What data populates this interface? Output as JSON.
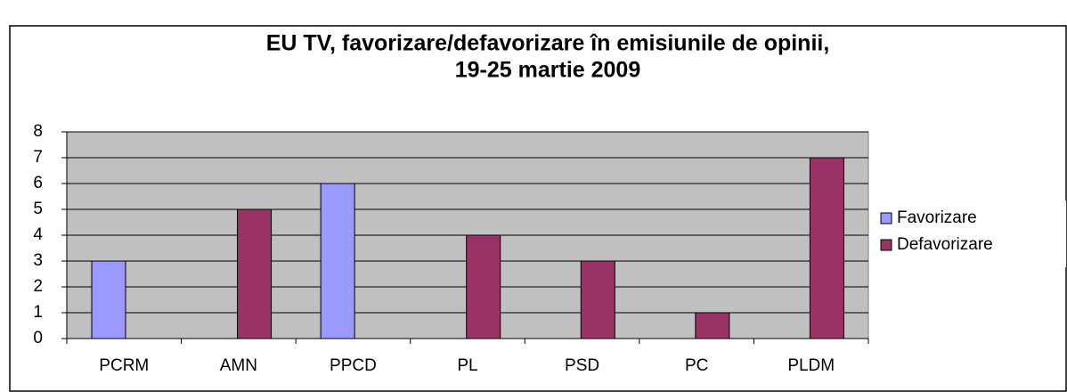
{
  "chart_data": {
    "type": "bar",
    "title": [
      "EU TV, favorizare/defavorizare în emisiunile de opinii,",
      "19-25 martie 2009"
    ],
    "categories": [
      "PCRM",
      "AMN",
      "PPCD",
      "PL",
      "PSD",
      "PC",
      "PLDM"
    ],
    "series": [
      {
        "name": "Favorizare",
        "color": "#9999ff",
        "values": [
          3,
          0,
          6,
          0,
          0,
          0,
          0
        ]
      },
      {
        "name": "Defavorizare",
        "color": "#993366",
        "values": [
          0,
          5,
          0,
          4,
          3,
          1,
          7
        ]
      }
    ],
    "ylim": [
      0,
      8
    ],
    "yticks": [
      0,
      1,
      2,
      3,
      4,
      5,
      6,
      7,
      8
    ],
    "grid": true,
    "legend": "right"
  }
}
